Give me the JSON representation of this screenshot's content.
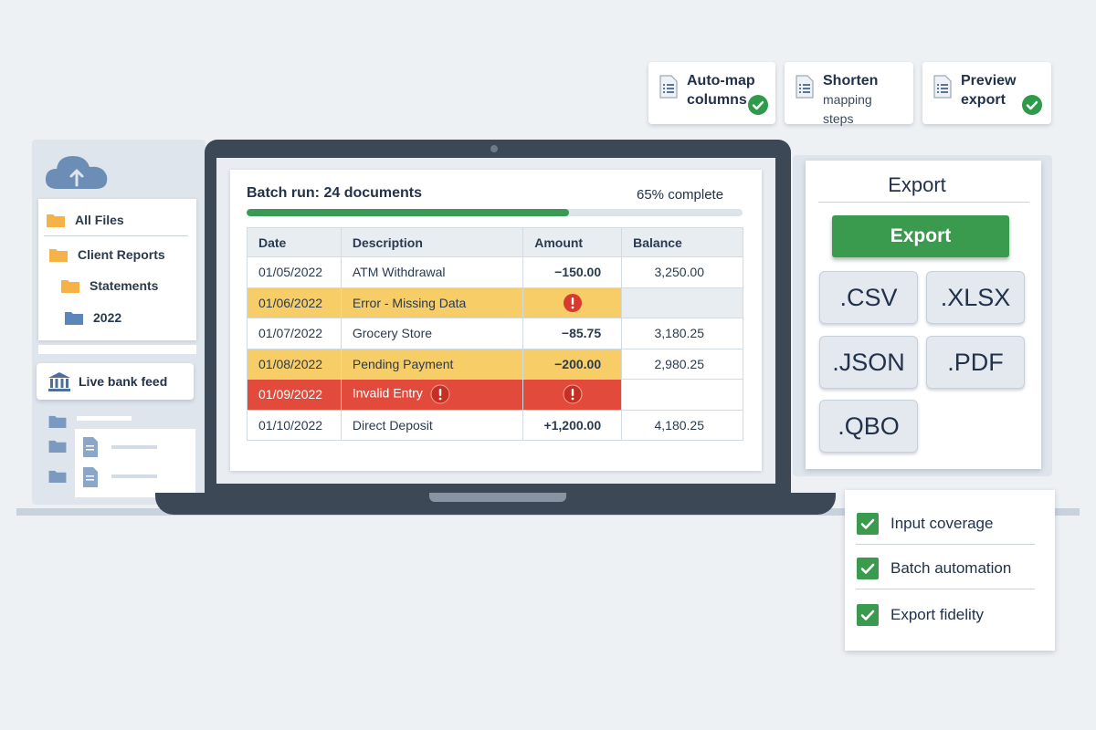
{
  "feature_cards": [
    {
      "line1": "Auto-map",
      "line2": "columns",
      "checked": true
    },
    {
      "line1": "Shorten",
      "line2": "mapping steps",
      "checked": false
    },
    {
      "line1": "Preview",
      "line2": "export",
      "checked": true
    }
  ],
  "sidebar": {
    "folders": [
      {
        "label": "All Files",
        "color": "#f4b247"
      },
      {
        "label": "Client Reports",
        "color": "#f4b247"
      },
      {
        "label": "Statements",
        "color": "#f4b247"
      },
      {
        "label": "2022",
        "color": "#5d86b8"
      }
    ],
    "bank_feed_label": "Live bank feed"
  },
  "batch": {
    "title": "Batch run: 24 documents",
    "progress_label": "65% complete",
    "progress_fraction": 0.65
  },
  "table": {
    "headers": [
      "Date",
      "Description",
      "Amount",
      "Balance"
    ],
    "rows": [
      {
        "date": "01/05/2022",
        "description": "ATM Withdrawal",
        "amount": "−150.00",
        "balance": "3,250.00",
        "status": "ok"
      },
      {
        "date": "01/06/2022",
        "description": "Error - Missing Data",
        "amount": "",
        "balance": "",
        "status": "warn-alert"
      },
      {
        "date": "01/07/2022",
        "description": "Grocery Store",
        "amount": "−85.75",
        "balance": "3,180.25",
        "status": "ok"
      },
      {
        "date": "01/08/2022",
        "description": "Pending Payment",
        "amount": "−200.00",
        "balance": "2,980.25",
        "status": "warn"
      },
      {
        "date": "01/09/2022",
        "description": "Invalid Entry",
        "amount": "",
        "balance": "",
        "status": "error"
      },
      {
        "date": "01/10/2022",
        "description": "Direct Deposit",
        "amount": "+1,200.00",
        "balance": "4,180.25",
        "status": "ok"
      }
    ]
  },
  "export": {
    "title": "Export",
    "button_label": "Export",
    "formats": [
      ".CSV",
      ".XLSX",
      ".JSON",
      ".PDF",
      ".QBO"
    ]
  },
  "checklist": [
    {
      "label": "Input coverage",
      "checked": true
    },
    {
      "label": "Batch automation",
      "checked": true
    },
    {
      "label": "Export fidelity",
      "checked": true
    }
  ],
  "colors": {
    "accent_green": "#3a9a4e",
    "warning_yellow": "#f7cd68",
    "error_red": "#e24a3b",
    "laptop_frame": "#3c4856"
  },
  "icons": [
    "document-icon",
    "check-circle-icon",
    "cloud-upload-icon",
    "folder-icon",
    "bank-icon",
    "alert-icon",
    "checkbox-icon"
  ]
}
